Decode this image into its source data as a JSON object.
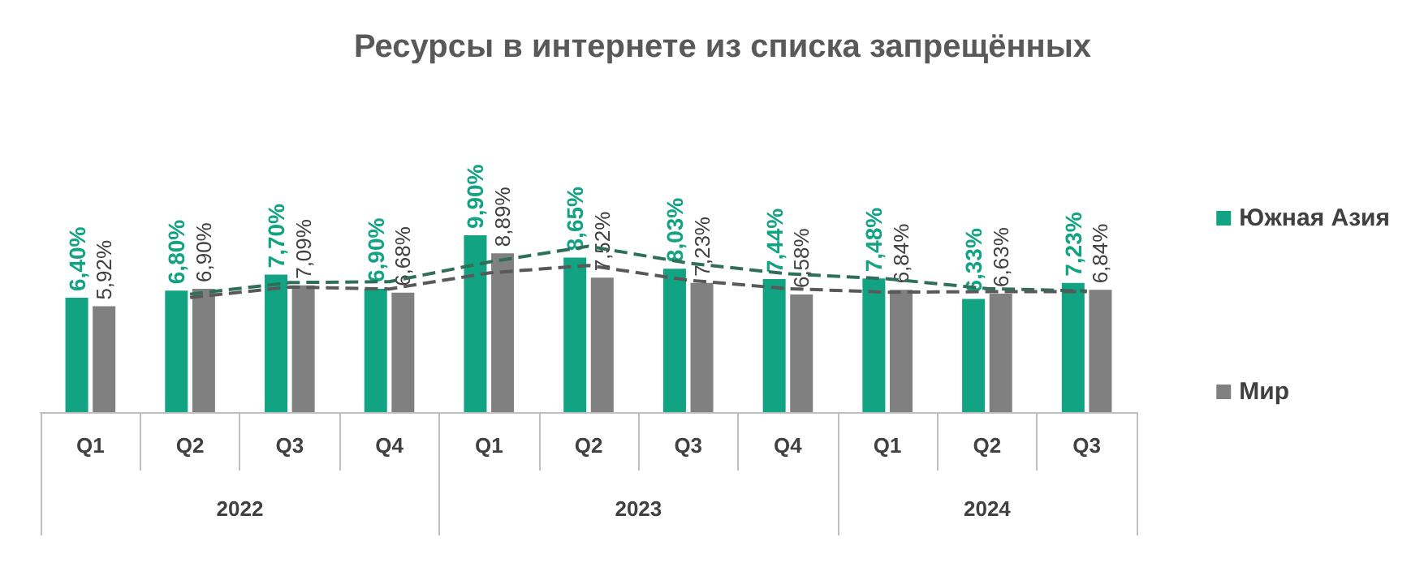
{
  "chart_data": {
    "type": "bar",
    "title": "Ресурсы в интернете из списка запрещённых",
    "categories": [
      "Q1",
      "Q2",
      "Q3",
      "Q4",
      "Q1",
      "Q2",
      "Q3",
      "Q4",
      "Q1",
      "Q2",
      "Q3"
    ],
    "annotations": [
      "2022",
      "2023",
      "2024"
    ],
    "series": [
      {
        "name": "Южная Азия",
        "color": "#12a383",
        "values": [
          6.4,
          6.8,
          7.7,
          6.9,
          9.9,
          8.65,
          8.03,
          7.44,
          7.48,
          6.33,
          7.23
        ],
        "value_labels": [
          "6,40%",
          "6,80%",
          "7,70%",
          "6,90%",
          "9,90%",
          "8,65%",
          "8,03%",
          "7,44%",
          "7,48%",
          "6,33%",
          "7,23%"
        ]
      },
      {
        "name": "Мир",
        "color": "#808080",
        "values": [
          5.92,
          6.9,
          7.09,
          6.68,
          8.89,
          7.52,
          7.23,
          6.58,
          6.84,
          6.63,
          6.84
        ],
        "value_labels": [
          "5,92%",
          "6,90%",
          "7,09%",
          "6,68%",
          "8,89%",
          "7,52%",
          "7,23%",
          "6,58%",
          "6,84%",
          "6,63%",
          "6,84%"
        ]
      },
      {
        "type": "line",
        "color": "#2f6f5a",
        "line_style": "dashed",
        "values": [
          null,
          6.6,
          7.25,
          7.3,
          8.4,
          9.28,
          8.34,
          7.74,
          7.46,
          6.91,
          6.78
        ]
      },
      {
        "type": "line",
        "color": "#595959",
        "line_style": "dashed",
        "values": [
          null,
          6.41,
          7.0,
          6.89,
          7.79,
          8.21,
          7.38,
          6.91,
          6.71,
          6.74,
          6.74
        ]
      }
    ],
    "legend": "right"
  }
}
